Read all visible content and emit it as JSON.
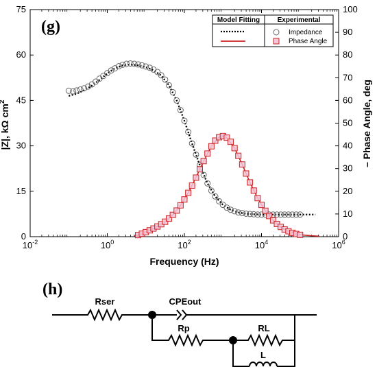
{
  "chart_data": {
    "type": "scatter",
    "panel_label": "(g)",
    "xlabel": "Frequency (Hz)",
    "ylabel_left": "|Z|, kΩ cm",
    "ylabel_left_sup": "2",
    "ylabel_right": "– Phase Angle, deg",
    "x_scale": "log",
    "xlim": [
      0.01,
      1000000
    ],
    "ylim_left": [
      0,
      75
    ],
    "ylim_right": [
      0,
      100
    ],
    "x_ticks": [
      {
        "base": "10",
        "exp": "-2",
        "value": 0.01
      },
      {
        "base": "10",
        "exp": "0",
        "value": 1
      },
      {
        "base": "10",
        "exp": "2",
        "value": 100
      },
      {
        "base": "10",
        "exp": "4",
        "value": 10000
      },
      {
        "base": "10",
        "exp": "6",
        "value": 1000000
      }
    ],
    "y_ticks_left": [
      "0",
      "15",
      "30",
      "45",
      "60",
      "75"
    ],
    "y_ticks_right": [
      "0",
      "10",
      "20",
      "30",
      "40",
      "50",
      "60",
      "70",
      "80",
      "90",
      "100"
    ],
    "grid": false,
    "legend_placement": "top-right",
    "legend": {
      "model_title": "Model Fitting",
      "experimental_title": "Experimental",
      "impedance_label": "Impedance",
      "phase_label": "Phase Angle"
    },
    "colors": {
      "impedance_marker": "#666666",
      "phase_marker": "#cc2222",
      "phase_fill": "#f3c6d8",
      "fit_line_impedance": "#000000",
      "fit_line_phase": "#cc2222"
    },
    "series": [
      {
        "name": "Impedance",
        "axis": "left",
        "marker": "circle",
        "x": [
          0.1,
          0.13,
          0.16,
          0.2,
          0.25,
          0.32,
          0.4,
          0.5,
          0.63,
          0.79,
          1.0,
          1.26,
          1.58,
          2.0,
          2.51,
          3.16,
          3.98,
          5.01,
          6.31,
          7.94,
          10,
          12.6,
          15.8,
          20,
          25.1,
          31.6,
          39.8,
          50.1,
          63.1,
          79.4,
          100,
          126,
          158,
          200,
          251,
          316,
          398,
          501,
          631,
          794,
          1000,
          1260,
          1580,
          2000,
          2510,
          3160,
          3980,
          5010,
          6310,
          7940,
          10000,
          12600,
          15800,
          20000,
          25100,
          31600,
          39800,
          50100,
          63100,
          79400,
          100000
        ],
        "values": [
          48.2,
          48.0,
          48.3,
          48.6,
          49.0,
          49.6,
          50.3,
          51.2,
          52.2,
          53.1,
          54.0,
          54.9,
          55.6,
          56.3,
          56.8,
          57.1,
          57.2,
          57.1,
          56.9,
          56.6,
          56.2,
          55.8,
          55.2,
          54.4,
          53.3,
          51.9,
          50.0,
          47.7,
          45.0,
          41.8,
          38.3,
          34.6,
          30.8,
          27.1,
          23.6,
          20.4,
          17.6,
          15.2,
          13.3,
          11.7,
          10.5,
          9.6,
          8.9,
          8.4,
          8.0,
          7.8,
          7.6,
          7.5,
          7.4,
          7.3,
          7.3,
          7.3,
          7.3,
          7.3,
          7.3,
          7.3,
          7.3,
          7.3,
          7.3,
          7.3,
          7.3
        ]
      },
      {
        "name": "Phase Angle",
        "axis": "right",
        "marker": "square",
        "x": [
          6.3,
          7.9,
          10,
          12.6,
          15.8,
          20,
          25.1,
          31.6,
          39.8,
          50.1,
          63.1,
          79.4,
          100,
          126,
          158,
          200,
          251,
          316,
          398,
          501,
          631,
          794,
          1000,
          1260,
          1580,
          2000,
          2510,
          3160,
          3980,
          5010,
          6310,
          7940,
          10000,
          12600,
          15800,
          20000,
          25100,
          31600,
          39800,
          50100,
          63100,
          79400,
          100000
        ],
        "values": [
          0.7,
          1.3,
          2.0,
          2.8,
          3.6,
          4.5,
          5.5,
          6.6,
          8.0,
          9.6,
          11.5,
          13.8,
          16.4,
          19.3,
          22.5,
          26.0,
          29.7,
          33.3,
          36.6,
          39.8,
          42.3,
          43.8,
          44.3,
          43.6,
          41.8,
          39.0,
          35.6,
          31.8,
          27.8,
          23.9,
          20.3,
          17.0,
          14.0,
          11.4,
          9.1,
          7.2,
          5.6,
          4.3,
          3.2,
          2.4,
          1.7,
          1.2,
          0.8
        ]
      }
    ],
    "fit_series": [
      {
        "axis": "left",
        "style": "dotted",
        "x": [
          0.1,
          0.16,
          0.25,
          0.4,
          0.63,
          1.0,
          1.58,
          2.51,
          3.98,
          6.31,
          10,
          15.8,
          25.1,
          39.8,
          63.1,
          100,
          158,
          251,
          398,
          631,
          1000,
          1580,
          2510,
          3980,
          6310,
          10000,
          15800,
          25100,
          39800,
          63100,
          100000,
          158000,
          251000
        ],
        "values": [
          46.5,
          47.2,
          48.3,
          49.9,
          51.8,
          53.9,
          55.6,
          56.6,
          56.9,
          56.6,
          56.0,
          55.0,
          53.2,
          50.0,
          45.0,
          38.3,
          30.8,
          23.6,
          17.6,
          13.3,
          10.5,
          8.9,
          8.0,
          7.6,
          7.4,
          7.3,
          7.3,
          7.3,
          7.3,
          7.3,
          7.3,
          7.3,
          7.3
        ]
      },
      {
        "axis": "right",
        "style": "solid",
        "x": [
          5.0,
          7.9,
          12.6,
          20,
          31.6,
          50.1,
          79.4,
          126,
          200,
          316,
          501,
          794,
          1000,
          1260,
          2000,
          3160,
          5010,
          7940,
          12600,
          20000,
          31600,
          50100,
          79400,
          126000,
          200000,
          316000
        ],
        "values": [
          0.3,
          1.3,
          2.8,
          4.5,
          6.6,
          9.6,
          13.8,
          19.3,
          26.0,
          33.3,
          39.8,
          43.8,
          44.3,
          43.6,
          39.0,
          31.8,
          23.9,
          17.0,
          11.4,
          7.2,
          4.3,
          2.4,
          1.2,
          0.7,
          0.4,
          0.2
        ]
      }
    ]
  },
  "circuit": {
    "panel_label": "(h)",
    "components": {
      "rser": "Rser",
      "cpe": "CPEout",
      "rp": "Rp",
      "rl": "RL",
      "l": "L"
    }
  }
}
